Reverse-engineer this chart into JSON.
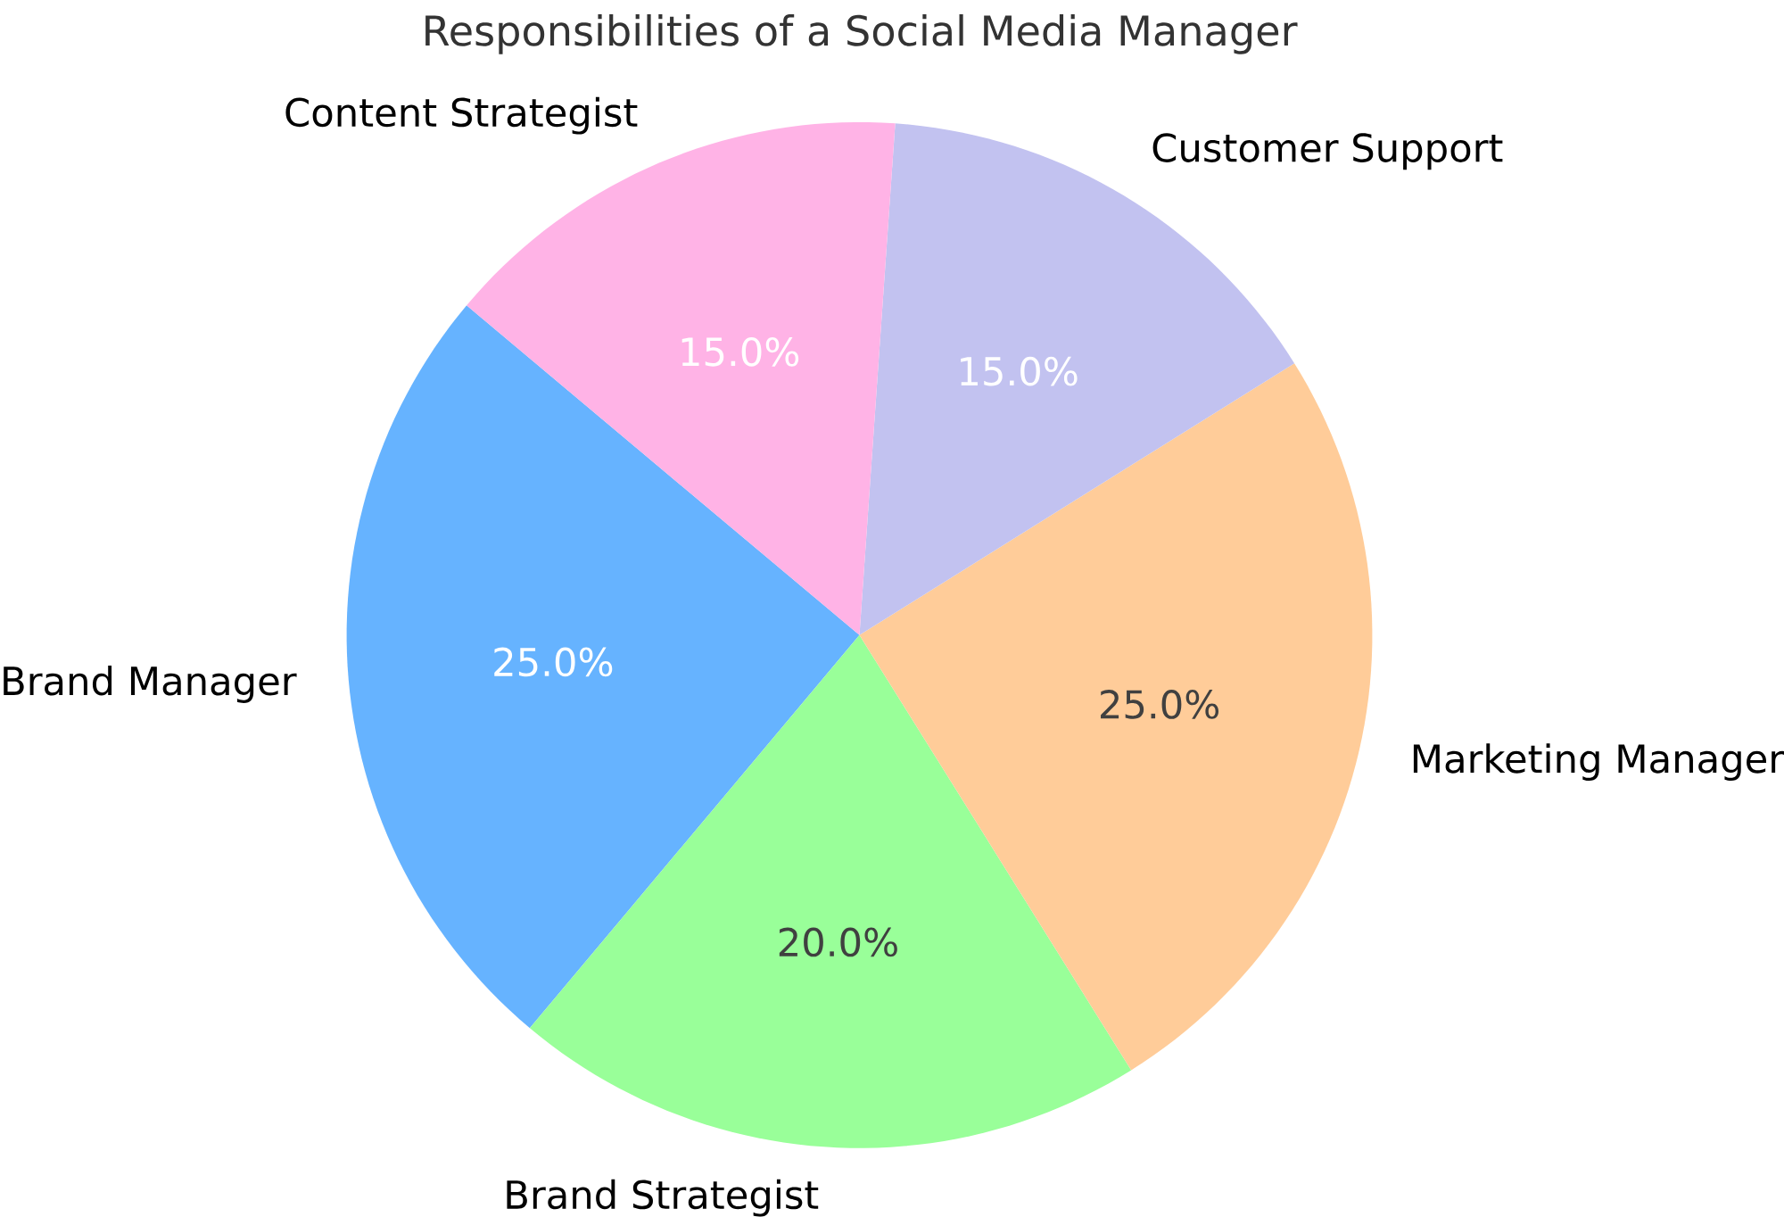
{
  "chart_data": {
    "type": "pie",
    "title": "Responsibilities of a Social Media Manager",
    "categories": [
      "Brand Manager",
      "Brand Strategist",
      "Marketing Manager",
      "Customer Support",
      "Content Strategist"
    ],
    "values": [
      25,
      20,
      25,
      15,
      15
    ],
    "colors": [
      "#66b3ff",
      "#99ff99",
      "#ffcc99",
      "#c2c2f0",
      "#ffb3e6"
    ],
    "value_labels": [
      "25.0%",
      "20.0%",
      "25.0%",
      "15.0%",
      "15.0%"
    ]
  }
}
